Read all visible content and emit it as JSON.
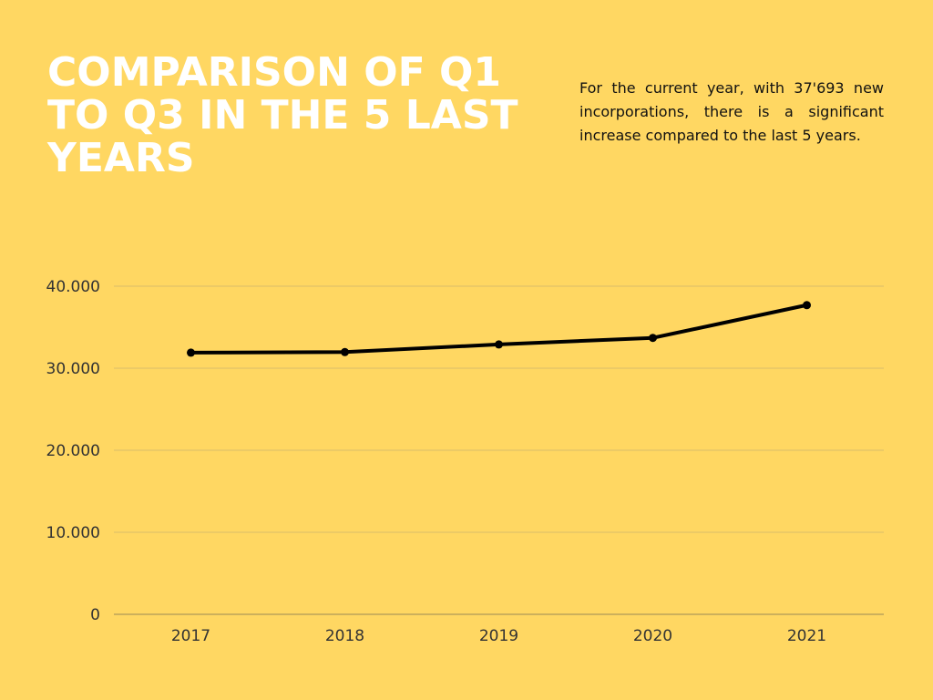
{
  "title": "Comparison of Q1 to Q3 in the 5 last years",
  "description": "For the current year, with 37'693 new incorporations, there is a significant increase compared to the last 5 years.",
  "colors": {
    "background": "#FFD762",
    "line": "#000000",
    "grid": "#D9BD6A"
  },
  "chart_data": {
    "type": "line",
    "title": "Comparison of Q1 to Q3 in the 5 last years",
    "xlabel": "",
    "ylabel": "",
    "categories": [
      "2017",
      "2018",
      "2019",
      "2020",
      "2021"
    ],
    "series": [
      {
        "name": "New incorporations",
        "values": [
          31900,
          31970,
          32900,
          33700,
          37693
        ]
      }
    ],
    "ylim": [
      0,
      40000
    ],
    "yticks": [
      0,
      10000,
      20000,
      30000,
      40000
    ],
    "ytick_labels": [
      "0",
      "10.000",
      "20.000",
      "30.000",
      "40.000"
    ],
    "grid": true,
    "legend": "none"
  }
}
